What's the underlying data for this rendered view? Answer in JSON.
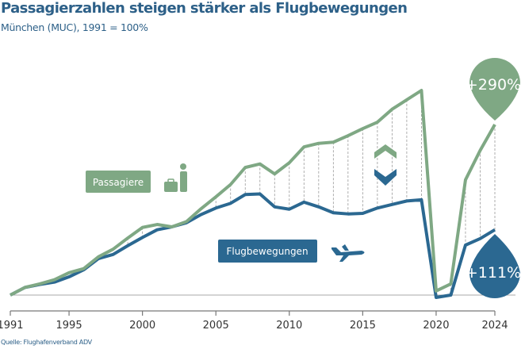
{
  "title": "Passagierzahlen steigen stärker als Flugbewegungen",
  "subtitle": "München (MUC), 1991 = 100%",
  "source": "Quelle: Flughafenverband ADV",
  "colors": {
    "passengers": "#7fa884",
    "flights": "#2b6891",
    "title": "#2d6088"
  },
  "chart_data": {
    "type": "line",
    "title": "Passagierzahlen steigen stärker als Flugbewegungen",
    "subtitle": "München (MUC), 1991 = 100%",
    "xlabel": "",
    "ylabel": "",
    "x": [
      1991,
      1992,
      1993,
      1994,
      1995,
      1996,
      1997,
      1998,
      1999,
      2000,
      2001,
      2002,
      2003,
      2004,
      2005,
      2006,
      2007,
      2008,
      2009,
      2010,
      2011,
      2012,
      2013,
      2014,
      2015,
      2016,
      2017,
      2018,
      2019,
      2020,
      2021,
      2022,
      2023,
      2024
    ],
    "xticks": [
      "1991",
      "1995",
      "2000",
      "2005",
      "2010",
      "2015",
      "2020",
      "2024"
    ],
    "unit": "% change vs. 1991",
    "grid": false,
    "series": [
      {
        "name": "Passagiere",
        "color": "#7fa884",
        "icon": "passenger-luggage-icon",
        "values": [
          0,
          13,
          19,
          26,
          38,
          45,
          65,
          78,
          97,
          115,
          120,
          116,
          125,
          147,
          167,
          188,
          217,
          223,
          206,
          225,
          252,
          258,
          260,
          271,
          283,
          294,
          316,
          332,
          348,
          7,
          19,
          196,
          246,
          290
        ]
      },
      {
        "name": "Flugbewegungen",
        "color": "#2b6891",
        "icon": "airplane-icon",
        "values": [
          0,
          13,
          18,
          22,
          31,
          43,
          62,
          69,
          84,
          98,
          111,
          116,
          123,
          137,
          148,
          156,
          171,
          172,
          150,
          146,
          158,
          150,
          140,
          138,
          139,
          148,
          154,
          160,
          162,
          -4,
          0,
          85,
          96,
          111
        ]
      }
    ],
    "annotations": [
      {
        "series": "Passagiere",
        "label": "+290%"
      },
      {
        "series": "Flugbewegungen",
        "label": "+111%"
      }
    ]
  }
}
